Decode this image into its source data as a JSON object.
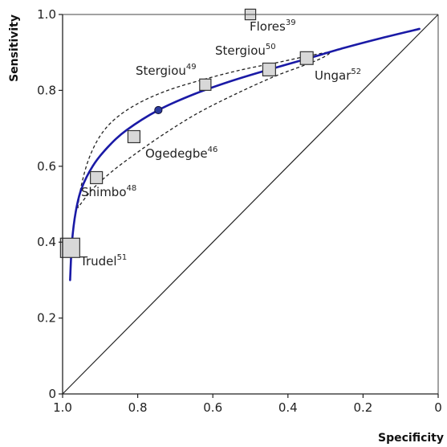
{
  "chart_data": {
    "type": "scatter",
    "title": "",
    "xlabel": "Specificity",
    "ylabel": "Sensitivity",
    "x_reversed": true,
    "xlim": [
      1.0,
      0
    ],
    "ylim": [
      0,
      1.0
    ],
    "xticks": [
      1.0,
      0.8,
      0.6,
      0.4,
      0.2,
      0
    ],
    "xtick_labels": [
      "1.0",
      "0.8",
      "0.6",
      "0.4",
      "0.2",
      "0"
    ],
    "yticks": [
      0,
      0.2,
      0.4,
      0.6,
      0.8,
      1.0
    ],
    "ytick_labels": [
      "0",
      "0.2",
      "0.4",
      "0.6",
      "0.8",
      "1.0"
    ],
    "grid": false,
    "colors": {
      "sroc_curve": "#1a1aa6",
      "summary_point": "#2b3a9e",
      "study_box_fill": "#d8d8d8",
      "study_box_stroke": "#333333",
      "chance_line": "#222222",
      "confidence_region": "#222222"
    },
    "studies": [
      {
        "name": "Flores",
        "ref": "39",
        "specificity": 0.5,
        "sensitivity": 1.0,
        "weight": 0.4
      },
      {
        "name": "Stergiou",
        "ref": "50",
        "specificity": 0.45,
        "sensitivity": 0.855,
        "weight": 0.55
      },
      {
        "name": "Ungar",
        "ref": "52",
        "specificity": 0.35,
        "sensitivity": 0.885,
        "weight": 0.55
      },
      {
        "name": "Stergiou",
        "ref": "49",
        "specificity": 0.62,
        "sensitivity": 0.815,
        "weight": 0.45
      },
      {
        "name": "Ogedegbe",
        "ref": "46",
        "specificity": 0.81,
        "sensitivity": 0.678,
        "weight": 0.5
      },
      {
        "name": "Shimbo",
        "ref": "48",
        "specificity": 0.91,
        "sensitivity": 0.57,
        "weight": 0.5
      },
      {
        "name": "Trudel",
        "ref": "51",
        "specificity": 0.98,
        "sensitivity": 0.385,
        "weight": 1.0
      }
    ],
    "summary_point": {
      "specificity": 0.745,
      "sensitivity": 0.748
    },
    "sroc_curve": [
      {
        "specificity": 0.98,
        "sensitivity": 0.3
      },
      {
        "specificity": 0.975,
        "sensitivity": 0.4
      },
      {
        "specificity": 0.965,
        "sensitivity": 0.48
      },
      {
        "specificity": 0.95,
        "sensitivity": 0.54
      },
      {
        "specificity": 0.92,
        "sensitivity": 0.6
      },
      {
        "specificity": 0.88,
        "sensitivity": 0.65
      },
      {
        "specificity": 0.83,
        "sensitivity": 0.695
      },
      {
        "specificity": 0.745,
        "sensitivity": 0.748
      },
      {
        "specificity": 0.65,
        "sensitivity": 0.79
      },
      {
        "specificity": 0.55,
        "sensitivity": 0.825
      },
      {
        "specificity": 0.45,
        "sensitivity": 0.855
      },
      {
        "specificity": 0.35,
        "sensitivity": 0.883
      },
      {
        "specificity": 0.25,
        "sensitivity": 0.912
      },
      {
        "specificity": 0.15,
        "sensitivity": 0.938
      },
      {
        "specificity": 0.05,
        "sensitivity": 0.962
      }
    ],
    "confidence_region": [
      {
        "specificity": 0.96,
        "sensitivity": 0.49
      },
      {
        "specificity": 0.95,
        "sensitivity": 0.55
      },
      {
        "specificity": 0.93,
        "sensitivity": 0.62
      },
      {
        "specificity": 0.9,
        "sensitivity": 0.68
      },
      {
        "specificity": 0.86,
        "sensitivity": 0.725
      },
      {
        "specificity": 0.8,
        "sensitivity": 0.765
      },
      {
        "specificity": 0.72,
        "sensitivity": 0.8
      },
      {
        "specificity": 0.62,
        "sensitivity": 0.83
      },
      {
        "specificity": 0.52,
        "sensitivity": 0.855
      },
      {
        "specificity": 0.42,
        "sensitivity": 0.875
      },
      {
        "specificity": 0.34,
        "sensitivity": 0.892
      },
      {
        "specificity": 0.29,
        "sensitivity": 0.9
      },
      {
        "specificity": 0.31,
        "sensitivity": 0.885
      },
      {
        "specificity": 0.36,
        "sensitivity": 0.865
      },
      {
        "specificity": 0.44,
        "sensitivity": 0.835
      },
      {
        "specificity": 0.54,
        "sensitivity": 0.79
      },
      {
        "specificity": 0.64,
        "sensitivity": 0.74
      },
      {
        "specificity": 0.73,
        "sensitivity": 0.685
      },
      {
        "specificity": 0.81,
        "sensitivity": 0.63
      },
      {
        "specificity": 0.87,
        "sensitivity": 0.585
      },
      {
        "specificity": 0.92,
        "sensitivity": 0.54
      },
      {
        "specificity": 0.96,
        "sensitivity": 0.49
      }
    ],
    "chance_line": [
      {
        "specificity": 1.0,
        "sensitivity": 0
      },
      {
        "specificity": 0,
        "sensitivity": 1.0
      }
    ]
  }
}
